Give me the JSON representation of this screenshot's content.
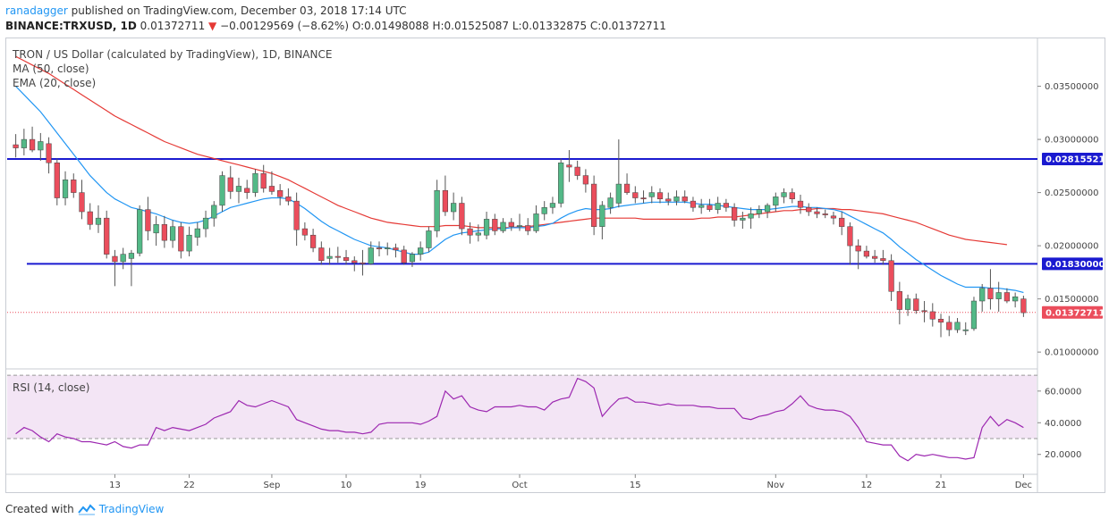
{
  "header": {
    "user": "ranadagger",
    "published": " published on TradingView.com, December 03, 2018 17:14 UTC",
    "symbol": "BINANCE:TRXUSD, 1D",
    "last": " 0.01372711 ",
    "arrow": "▼",
    "change": " −0.00129569 (−8.62%) ",
    "ohlc": "O:0.01498088 H:0.01525087 L:0.01332875 C:0.01372711"
  },
  "legend": {
    "title": "TRON / US Dollar (calculated by TradingView), 1D, BINANCE",
    "ma": "MA (50, close)",
    "ema": "EMA (20, close)",
    "rsi": "RSI (14, close)"
  },
  "footer": {
    "created_with": "Created with",
    "brand": "TradingView"
  },
  "colors": {
    "up": "#53b987",
    "down": "#eb4d5c",
    "ema": "#2196f3",
    "ma": "#e53935",
    "level": "#1a1ad0",
    "rsi": "#9c27b0",
    "rsi_band": "#f3e5f5",
    "last_tag": "#eb4d5c"
  },
  "chart_data": {
    "type": "candlestick",
    "price_ylim": [
      0.0085,
      0.0395
    ],
    "price_ticks": [
      "0.03500000",
      "0.03000000",
      "0.02500000",
      "0.02000000",
      "0.01500000",
      "0.01000000"
    ],
    "price_tick_values": [
      0.035,
      0.03,
      0.025,
      0.02,
      0.015,
      0.01
    ],
    "levels": [
      {
        "value": 0.02815521,
        "label": "0.02815521"
      },
      {
        "value": 0.0183,
        "label": "0.01830000"
      }
    ],
    "last_price": {
      "value": 0.01372711,
      "label": "0.01372711"
    },
    "x_labels": [
      {
        "label": "13",
        "index": 12
      },
      {
        "label": "22",
        "index": 21
      },
      {
        "label": "Sep",
        "index": 31
      },
      {
        "label": "10",
        "index": 40
      },
      {
        "label": "19",
        "index": 49
      },
      {
        "label": "Oct",
        "index": 61
      },
      {
        "label": "15",
        "index": 75
      },
      {
        "label": "Nov",
        "index": 92
      },
      {
        "label": "12",
        "index": 103
      },
      {
        "label": "21",
        "index": 112
      },
      {
        "label": "Dec",
        "index": 122
      }
    ],
    "candles": [
      [
        0.0295,
        0.0305,
        0.0283,
        0.0292
      ],
      [
        0.0292,
        0.031,
        0.0285,
        0.03
      ],
      [
        0.03,
        0.0312,
        0.0288,
        0.029
      ],
      [
        0.029,
        0.0306,
        0.028,
        0.0298
      ],
      [
        0.0296,
        0.0302,
        0.0268,
        0.0278
      ],
      [
        0.0278,
        0.0282,
        0.0238,
        0.0245
      ],
      [
        0.0245,
        0.027,
        0.0238,
        0.0262
      ],
      [
        0.0262,
        0.0268,
        0.0245,
        0.025
      ],
      [
        0.025,
        0.0262,
        0.0225,
        0.0232
      ],
      [
        0.0232,
        0.024,
        0.0215,
        0.022
      ],
      [
        0.022,
        0.0238,
        0.0212,
        0.0226
      ],
      [
        0.0226,
        0.0233,
        0.0188,
        0.0192
      ],
      [
        0.019,
        0.0196,
        0.0162,
        0.0185
      ],
      [
        0.0185,
        0.0198,
        0.0178,
        0.0192
      ],
      [
        0.0188,
        0.0196,
        0.0162,
        0.0193
      ],
      [
        0.0193,
        0.0238,
        0.019,
        0.0234
      ],
      [
        0.0234,
        0.0246,
        0.0205,
        0.0214
      ],
      [
        0.0212,
        0.0228,
        0.02,
        0.022
      ],
      [
        0.022,
        0.0228,
        0.0198,
        0.0205
      ],
      [
        0.0205,
        0.0224,
        0.0198,
        0.0218
      ],
      [
        0.0218,
        0.0222,
        0.0188,
        0.0195
      ],
      [
        0.0195,
        0.0218,
        0.019,
        0.021
      ],
      [
        0.0208,
        0.0222,
        0.02,
        0.0216
      ],
      [
        0.0216,
        0.0233,
        0.0208,
        0.0226
      ],
      [
        0.0226,
        0.0242,
        0.0218,
        0.0238
      ],
      [
        0.0238,
        0.027,
        0.0232,
        0.0266
      ],
      [
        0.0264,
        0.0275,
        0.0244,
        0.0251
      ],
      [
        0.0251,
        0.0264,
        0.024,
        0.0256
      ],
      [
        0.0254,
        0.0262,
        0.0244,
        0.025
      ],
      [
        0.025,
        0.0272,
        0.0246,
        0.0268
      ],
      [
        0.0268,
        0.0276,
        0.025,
        0.0254
      ],
      [
        0.0256,
        0.027,
        0.0248,
        0.0251
      ],
      [
        0.0252,
        0.0258,
        0.0238,
        0.0246
      ],
      [
        0.0246,
        0.0254,
        0.0238,
        0.0242
      ],
      [
        0.0242,
        0.025,
        0.02,
        0.0215
      ],
      [
        0.0216,
        0.0222,
        0.0205,
        0.021
      ],
      [
        0.021,
        0.0216,
        0.0194,
        0.0198
      ],
      [
        0.0198,
        0.0204,
        0.0182,
        0.0186
      ],
      [
        0.0188,
        0.0198,
        0.0182,
        0.019
      ],
      [
        0.019,
        0.0199,
        0.0184,
        0.0189
      ],
      [
        0.0189,
        0.0196,
        0.0182,
        0.0186
      ],
      [
        0.0186,
        0.019,
        0.0176,
        0.0184
      ],
      [
        0.0184,
        0.0196,
        0.0172,
        0.0183
      ],
      [
        0.0183,
        0.0204,
        0.0182,
        0.0198
      ],
      [
        0.0198,
        0.0204,
        0.019,
        0.0197
      ],
      [
        0.0197,
        0.0203,
        0.0191,
        0.0198
      ],
      [
        0.0198,
        0.0202,
        0.0189,
        0.0196
      ],
      [
        0.0196,
        0.02,
        0.0182,
        0.0184
      ],
      [
        0.0185,
        0.0194,
        0.018,
        0.0192
      ],
      [
        0.0192,
        0.0204,
        0.0186,
        0.0198
      ],
      [
        0.0198,
        0.0218,
        0.0194,
        0.0214
      ],
      [
        0.0214,
        0.0262,
        0.0208,
        0.0252
      ],
      [
        0.0252,
        0.0266,
        0.0228,
        0.0232
      ],
      [
        0.0232,
        0.025,
        0.0224,
        0.024
      ],
      [
        0.024,
        0.0246,
        0.021,
        0.0216
      ],
      [
        0.0216,
        0.0222,
        0.0202,
        0.021
      ],
      [
        0.021,
        0.022,
        0.0204,
        0.0212
      ],
      [
        0.021,
        0.0232,
        0.0206,
        0.0225
      ],
      [
        0.0225,
        0.023,
        0.021,
        0.0214
      ],
      [
        0.0214,
        0.0226,
        0.0212,
        0.0222
      ],
      [
        0.0222,
        0.0226,
        0.0214,
        0.0218
      ],
      [
        0.0218,
        0.023,
        0.0214,
        0.0219
      ],
      [
        0.0219,
        0.0226,
        0.021,
        0.0214
      ],
      [
        0.0214,
        0.0238,
        0.0212,
        0.023
      ],
      [
        0.023,
        0.0242,
        0.0224,
        0.0236
      ],
      [
        0.0236,
        0.0246,
        0.023,
        0.024
      ],
      [
        0.024,
        0.0282,
        0.0236,
        0.0278
      ],
      [
        0.0276,
        0.029,
        0.026,
        0.0274
      ],
      [
        0.0274,
        0.028,
        0.0262,
        0.0266
      ],
      [
        0.0266,
        0.0272,
        0.025,
        0.0258
      ],
      [
        0.0258,
        0.0266,
        0.021,
        0.0218
      ],
      [
        0.0218,
        0.0242,
        0.0206,
        0.0238
      ],
      [
        0.0236,
        0.025,
        0.023,
        0.0245
      ],
      [
        0.024,
        0.03,
        0.0236,
        0.0258
      ],
      [
        0.0258,
        0.0268,
        0.0248,
        0.025
      ],
      [
        0.025,
        0.0256,
        0.024,
        0.0245
      ],
      [
        0.0245,
        0.0252,
        0.024,
        0.0244
      ],
      [
        0.0246,
        0.0256,
        0.024,
        0.025
      ],
      [
        0.025,
        0.0254,
        0.024,
        0.0244
      ],
      [
        0.0244,
        0.025,
        0.0238,
        0.0242
      ],
      [
        0.0242,
        0.0252,
        0.0238,
        0.0246
      ],
      [
        0.0246,
        0.0252,
        0.024,
        0.0242
      ],
      [
        0.0242,
        0.0246,
        0.0232,
        0.0236
      ],
      [
        0.0236,
        0.0244,
        0.023,
        0.0238
      ],
      [
        0.0238,
        0.0244,
        0.0232,
        0.0234
      ],
      [
        0.0234,
        0.0246,
        0.023,
        0.024
      ],
      [
        0.024,
        0.0244,
        0.0232,
        0.0236
      ],
      [
        0.0236,
        0.024,
        0.0218,
        0.0224
      ],
      [
        0.0224,
        0.0232,
        0.0216,
        0.0226
      ],
      [
        0.0226,
        0.0236,
        0.0216,
        0.023
      ],
      [
        0.023,
        0.0238,
        0.0226,
        0.0234
      ],
      [
        0.0232,
        0.024,
        0.0226,
        0.0238
      ],
      [
        0.0238,
        0.025,
        0.0232,
        0.0246
      ],
      [
        0.0246,
        0.0254,
        0.024,
        0.025
      ],
      [
        0.025,
        0.0254,
        0.024,
        0.0244
      ],
      [
        0.0242,
        0.0248,
        0.023,
        0.0236
      ],
      [
        0.0236,
        0.024,
        0.0228,
        0.0232
      ],
      [
        0.0232,
        0.0236,
        0.0226,
        0.023
      ],
      [
        0.023,
        0.0234,
        0.0226,
        0.0229
      ],
      [
        0.0228,
        0.0232,
        0.022,
        0.0226
      ],
      [
        0.0226,
        0.0232,
        0.021,
        0.0218
      ],
      [
        0.0218,
        0.0222,
        0.0182,
        0.02
      ],
      [
        0.02,
        0.0206,
        0.0178,
        0.0195
      ],
      [
        0.0195,
        0.02,
        0.0188,
        0.019
      ],
      [
        0.019,
        0.0196,
        0.0184,
        0.0188
      ],
      [
        0.0188,
        0.0196,
        0.0182,
        0.0186
      ],
      [
        0.0186,
        0.0192,
        0.0148,
        0.0157
      ],
      [
        0.0157,
        0.0166,
        0.0126,
        0.014
      ],
      [
        0.014,
        0.0154,
        0.0134,
        0.015
      ],
      [
        0.015,
        0.0155,
        0.0136,
        0.0139
      ],
      [
        0.0139,
        0.0148,
        0.0128,
        0.0138
      ],
      [
        0.0138,
        0.0146,
        0.0124,
        0.0131
      ],
      [
        0.0131,
        0.0136,
        0.0114,
        0.0128
      ],
      [
        0.0128,
        0.0134,
        0.0115,
        0.0121
      ],
      [
        0.0121,
        0.0132,
        0.0118,
        0.0128
      ],
      [
        0.012,
        0.0128,
        0.0116,
        0.0121
      ],
      [
        0.0122,
        0.0152,
        0.012,
        0.0148
      ],
      [
        0.0148,
        0.0164,
        0.0138,
        0.016
      ],
      [
        0.016,
        0.0178,
        0.014,
        0.015
      ],
      [
        0.015,
        0.0166,
        0.0138,
        0.0156
      ],
      [
        0.0156,
        0.016,
        0.0146,
        0.0148
      ],
      [
        0.0148,
        0.0156,
        0.0142,
        0.0152
      ],
      [
        0.015,
        0.0153,
        0.0133,
        0.0137
      ]
    ],
    "ema20": [
      0.035,
      0.0342,
      0.0334,
      0.0326,
      0.0316,
      0.0306,
      0.0296,
      0.0286,
      0.0276,
      0.0266,
      0.0258,
      0.025,
      0.0244,
      0.024,
      0.0236,
      0.0234,
      0.0232,
      0.023,
      0.0227,
      0.0224,
      0.0222,
      0.0221,
      0.0222,
      0.0224,
      0.0228,
      0.0232,
      0.0236,
      0.0238,
      0.024,
      0.0242,
      0.0244,
      0.0245,
      0.0245,
      0.0244,
      0.024,
      0.0235,
      0.0229,
      0.0223,
      0.0218,
      0.0214,
      0.021,
      0.0206,
      0.0203,
      0.02,
      0.0199,
      0.0198,
      0.0196,
      0.0194,
      0.0192,
      0.0192,
      0.0194,
      0.02,
      0.0206,
      0.021,
      0.0212,
      0.0213,
      0.0214,
      0.0215,
      0.0216,
      0.0216,
      0.0217,
      0.0217,
      0.0217,
      0.0218,
      0.0219,
      0.0221,
      0.0226,
      0.023,
      0.0233,
      0.0235,
      0.0234,
      0.0234,
      0.0235,
      0.0237,
      0.0238,
      0.0239,
      0.024,
      0.0241,
      0.0241,
      0.0241,
      0.0241,
      0.0241,
      0.024,
      0.0239,
      0.0239,
      0.0238,
      0.0237,
      0.0236,
      0.0235,
      0.0234,
      0.0234,
      0.0234,
      0.0235,
      0.0236,
      0.0237,
      0.0237,
      0.0236,
      0.0236,
      0.0235,
      0.0234,
      0.0232,
      0.0228,
      0.0224,
      0.022,
      0.0216,
      0.0212,
      0.0206,
      0.0199,
      0.0193,
      0.0187,
      0.0182,
      0.0177,
      0.0172,
      0.0168,
      0.0164,
      0.0161,
      0.0161,
      0.0161,
      0.016,
      0.016,
      0.0159,
      0.0158,
      0.0156
    ],
    "ma50": [
      0.0378,
      0.0374,
      0.037,
      0.0366,
      0.0362,
      0.0357,
      0.0352,
      0.0347,
      0.0342,
      0.0337,
      0.0332,
      0.0327,
      0.0322,
      0.0318,
      0.0314,
      0.031,
      0.0306,
      0.0302,
      0.0298,
      0.0295,
      0.0292,
      0.0289,
      0.0286,
      0.0284,
      0.0282,
      0.028,
      0.0278,
      0.0276,
      0.0274,
      0.0272,
      0.027,
      0.0268,
      0.0265,
      0.0262,
      0.0258,
      0.0254,
      0.025,
      0.0246,
      0.0242,
      0.0238,
      0.0235,
      0.0232,
      0.0229,
      0.0226,
      0.0224,
      0.0222,
      0.0221,
      0.022,
      0.0219,
      0.0218,
      0.0218,
      0.0218,
      0.0219,
      0.0219,
      0.0219,
      0.0218,
      0.0217,
      0.0217,
      0.0217,
      0.0217,
      0.0217,
      0.0218,
      0.0218,
      0.0219,
      0.022,
      0.0221,
      0.0222,
      0.0223,
      0.0224,
      0.0225,
      0.0226,
      0.0226,
      0.0226,
      0.0226,
      0.0226,
      0.0226,
      0.0225,
      0.0225,
      0.0225,
      0.0225,
      0.0225,
      0.0225,
      0.0225,
      0.0226,
      0.0226,
      0.0227,
      0.0227,
      0.0227,
      0.0228,
      0.0229,
      0.023,
      0.0231,
      0.0232,
      0.0233,
      0.0233,
      0.0234,
      0.0234,
      0.0235,
      0.0235,
      0.0235,
      0.0234,
      0.0234,
      0.0233,
      0.0232,
      0.0231,
      0.023,
      0.0228,
      0.0226,
      0.0224,
      0.0222,
      0.0219,
      0.0216,
      0.0213,
      0.021,
      0.0208,
      0.0206,
      0.0205,
      0.0204,
      0.0203,
      0.0202,
      0.0201
    ],
    "rsi": {
      "ylim": [
        8,
        74
      ],
      "ticks": [
        "60.0000",
        "40.0000",
        "20.0000"
      ],
      "tick_values": [
        60,
        40,
        20
      ],
      "band": [
        30,
        70
      ],
      "values": [
        33,
        37,
        35,
        31,
        28,
        33,
        31,
        30,
        28,
        28,
        27,
        26,
        28,
        25,
        24,
        26,
        26,
        37,
        35,
        37,
        36,
        35,
        37,
        39,
        43,
        45,
        47,
        54,
        51,
        50,
        52,
        54,
        52,
        50,
        42,
        40,
        38,
        36,
        35,
        35,
        34,
        34,
        33,
        34,
        39,
        40,
        40,
        40,
        40,
        39,
        41,
        44,
        60,
        55,
        57,
        50,
        48,
        47,
        50,
        50,
        50,
        51,
        50,
        50,
        48,
        53,
        55,
        56,
        68,
        66,
        62,
        44,
        50,
        55,
        56,
        53,
        53,
        52,
        51,
        52,
        51,
        51,
        51,
        50,
        50,
        49,
        49,
        49,
        43,
        42,
        44,
        45,
        47,
        48,
        52,
        57,
        51,
        49,
        48,
        48,
        47,
        44,
        37,
        28,
        27,
        26,
        26,
        19,
        16,
        20,
        19,
        20,
        19,
        18,
        18,
        17,
        18,
        37,
        44,
        38,
        42,
        40,
        37
      ]
    }
  }
}
